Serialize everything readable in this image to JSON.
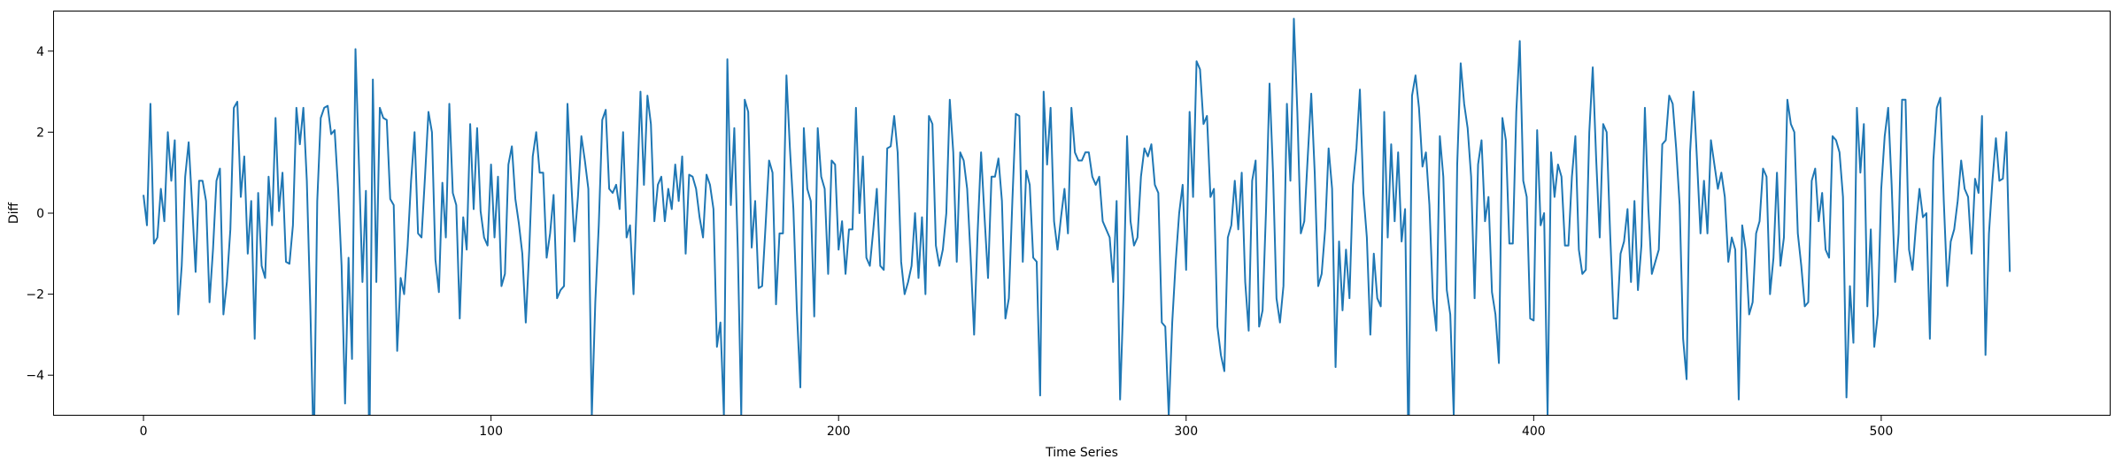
{
  "chart_data": {
    "type": "line",
    "title": "",
    "xlabel": "Time Series",
    "ylabel": "Diff",
    "xlim": [
      -26,
      566
    ],
    "ylim": [
      -5,
      5
    ],
    "x_ticks": [
      0,
      100,
      200,
      300,
      400,
      500
    ],
    "y_ticks": [
      -4,
      -2,
      0,
      2,
      4
    ],
    "grid": false,
    "legend": "none",
    "colors": {
      "line": "#1f77b4",
      "axes": "#000000",
      "background": "#ffffff"
    },
    "series": [
      {
        "x_start": 0,
        "x_step": 1,
        "values": [
          0.45,
          -0.3,
          2.7,
          -0.75,
          -0.6,
          0.6,
          -0.2,
          2.0,
          0.8,
          1.8,
          -2.5,
          -1.3,
          0.9,
          1.75,
          0.2,
          -1.45,
          0.8,
          0.8,
          0.3,
          -2.2,
          -0.9,
          0.8,
          1.1,
          -2.5,
          -1.7,
          -0.4,
          2.6,
          2.75,
          0.4,
          1.4,
          -1.0,
          0.3,
          -3.1,
          0.5,
          -1.3,
          -1.6,
          0.9,
          -0.3,
          2.35,
          0.05,
          1.0,
          -1.2,
          -1.25,
          -0.3,
          2.6,
          1.7,
          2.6,
          0.8,
          -2.3,
          -6.0,
          0.3,
          2.35,
          2.6,
          2.65,
          1.95,
          2.05,
          0.6,
          -1.3,
          -4.7,
          -1.1,
          -3.6,
          4.05,
          1.2,
          -1.7,
          0.55,
          -6.0,
          3.3,
          -1.7,
          2.6,
          2.35,
          2.3,
          0.35,
          0.2,
          -3.4,
          -1.6,
          -2.0,
          -0.8,
          0.8,
          2.0,
          -0.5,
          -0.6,
          0.9,
          2.5,
          2.0,
          -1.15,
          -1.95,
          0.75,
          -0.6,
          2.7,
          0.5,
          0.2,
          -2.6,
          -0.1,
          -0.9,
          2.2,
          0.1,
          2.1,
          0.05,
          -0.6,
          -0.8,
          1.2,
          -0.6,
          0.9,
          -1.8,
          -1.5,
          1.2,
          1.65,
          0.35,
          -0.25,
          -1.0,
          -2.7,
          -0.9,
          1.4,
          2.0,
          1.0,
          1.0,
          -1.1,
          -0.5,
          0.45,
          -2.1,
          -1.9,
          -1.8,
          2.7,
          0.9,
          -0.7,
          0.4,
          1.9,
          1.3,
          0.6,
          -5.0,
          -2.2,
          -0.3,
          2.3,
          2.55,
          0.6,
          0.5,
          0.7,
          0.1,
          2.0,
          -0.6,
          -0.3,
          -2.0,
          0.5,
          3.0,
          0.7,
          2.9,
          2.2,
          -0.2,
          0.7,
          0.9,
          -0.2,
          0.6,
          0.1,
          1.2,
          0.3,
          1.4,
          -1.0,
          0.95,
          0.9,
          0.6,
          -0.1,
          -0.6,
          0.95,
          0.7,
          0.1,
          -3.3,
          -2.7,
          -5.0,
          3.8,
          0.2,
          2.1,
          -0.9,
          -5.0,
          2.8,
          2.5,
          -0.85,
          0.3,
          -1.85,
          -1.8,
          -0.3,
          1.3,
          1.0,
          -2.25,
          -0.5,
          -0.5,
          3.4,
          1.6,
          0.1,
          -2.4,
          -4.3,
          2.1,
          0.6,
          0.3,
          -2.55,
          2.1,
          0.9,
          0.6,
          -1.5,
          1.3,
          1.2,
          -0.9,
          -0.2,
          -1.5,
          -0.4,
          -0.4,
          2.6,
          0.0,
          1.4,
          -1.1,
          -1.3,
          -0.4,
          0.6,
          -1.3,
          -1.4,
          1.6,
          1.65,
          2.4,
          1.5,
          -1.2,
          -2.0,
          -1.7,
          -1.3,
          0.0,
          -1.6,
          -0.1,
          -2.0,
          2.4,
          2.2,
          -0.8,
          -1.3,
          -0.9,
          0.0,
          2.8,
          1.5,
          -1.2,
          1.5,
          1.3,
          0.6,
          -1.1,
          -3.0,
          -0.5,
          1.5,
          -0.1,
          -1.6,
          0.9,
          0.9,
          1.35,
          0.3,
          -2.6,
          -2.1,
          0.3,
          2.45,
          2.4,
          -1.2,
          1.05,
          0.7,
          -1.1,
          -1.2,
          -4.5,
          3.0,
          1.2,
          2.6,
          -0.2,
          -0.9,
          -0.1,
          0.6,
          -0.5,
          2.6,
          1.5,
          1.3,
          1.3,
          1.5,
          1.5,
          0.9,
          0.7,
          0.9,
          -0.2,
          -0.4,
          -0.6,
          -1.7,
          0.3,
          -4.6,
          -2.0,
          1.9,
          -0.2,
          -0.8,
          -0.6,
          0.9,
          1.6,
          1.4,
          1.7,
          0.7,
          0.5,
          -2.7,
          -2.8,
          -5.0,
          -2.7,
          -1.2,
          0.0,
          0.7,
          -1.4,
          2.5,
          0.4,
          3.75,
          3.55,
          2.2,
          2.4,
          0.4,
          0.6,
          -2.8,
          -3.5,
          -3.9,
          -0.6,
          -0.3,
          0.8,
          -0.4,
          1.0,
          -1.7,
          -2.9,
          0.8,
          1.3,
          -2.8,
          -2.4,
          0.1,
          3.2,
          1.0,
          -2.1,
          -2.7,
          -1.8,
          2.7,
          0.8,
          4.8,
          2.5,
          -0.5,
          -0.2,
          1.4,
          2.95,
          1.0,
          -1.8,
          -1.5,
          -0.4,
          1.6,
          0.6,
          -3.8,
          -0.7,
          -2.4,
          -0.9,
          -2.1,
          0.7,
          1.6,
          3.05,
          0.5,
          -0.6,
          -3.0,
          -1.0,
          -2.1,
          -2.3,
          2.5,
          -0.6,
          1.7,
          -0.2,
          1.5,
          -0.7,
          0.1,
          -6.0,
          2.9,
          3.4,
          2.6,
          1.15,
          1.5,
          0.2,
          -2.1,
          -2.9,
          1.9,
          0.9,
          -1.9,
          -2.5,
          -5.0,
          1.2,
          3.7,
          2.7,
          2.1,
          0.9,
          -2.1,
          1.2,
          1.8,
          -0.2,
          0.4,
          -1.95,
          -2.5,
          -3.7,
          2.35,
          1.8,
          -0.75,
          -0.75,
          2.5,
          4.25,
          0.8,
          0.4,
          -2.6,
          -2.65,
          2.05,
          -0.3,
          0.0,
          -5.0,
          1.5,
          0.4,
          1.2,
          0.9,
          -0.8,
          -0.8,
          0.9,
          1.9,
          -0.9,
          -1.5,
          -1.4,
          2.0,
          3.6,
          1.3,
          -0.6,
          2.2,
          2.0,
          -0.5,
          -2.6,
          -2.6,
          -1.0,
          -0.7,
          0.1,
          -1.7,
          0.3,
          -1.9,
          -0.8,
          2.6,
          0.1,
          -1.5,
          -1.2,
          -0.9,
          1.7,
          1.8,
          2.9,
          2.7,
          1.6,
          0.2,
          -3.1,
          -4.1,
          1.5,
          3.0,
          1.3,
          -0.5,
          0.8,
          -0.5,
          1.8,
          1.2,
          0.6,
          1.0,
          0.4,
          -1.2,
          -0.6,
          -0.9,
          -4.6,
          -0.3,
          -0.9,
          -2.5,
          -2.2,
          -0.5,
          -0.2,
          1.1,
          0.9,
          -2.0,
          -1.1,
          1.0,
          -1.3,
          -0.6,
          2.8,
          2.2,
          2.0,
          -0.5,
          -1.3,
          -2.3,
          -2.2,
          0.8,
          1.1,
          -0.2,
          0.5,
          -0.9,
          -1.1,
          1.9,
          1.8,
          1.5,
          0.4,
          -4.55,
          -1.8,
          -3.2,
          2.6,
          1.0,
          2.2,
          -2.3,
          -0.4,
          -3.3,
          -2.5,
          0.6,
          1.9,
          2.6,
          0.7,
          -1.7,
          -0.5,
          2.8,
          2.8,
          -0.9,
          -1.4,
          -0.3,
          0.6,
          -0.1,
          0.0,
          -3.1,
          1.3,
          2.6,
          2.85,
          0.3,
          -1.8,
          -0.7,
          -0.4,
          0.3,
          1.3,
          0.6,
          0.4,
          -1.0,
          0.85,
          0.5,
          2.4,
          -3.5,
          -0.5,
          0.8,
          1.85,
          0.8,
          0.85,
          2.0,
          -1.45
        ]
      }
    ]
  }
}
